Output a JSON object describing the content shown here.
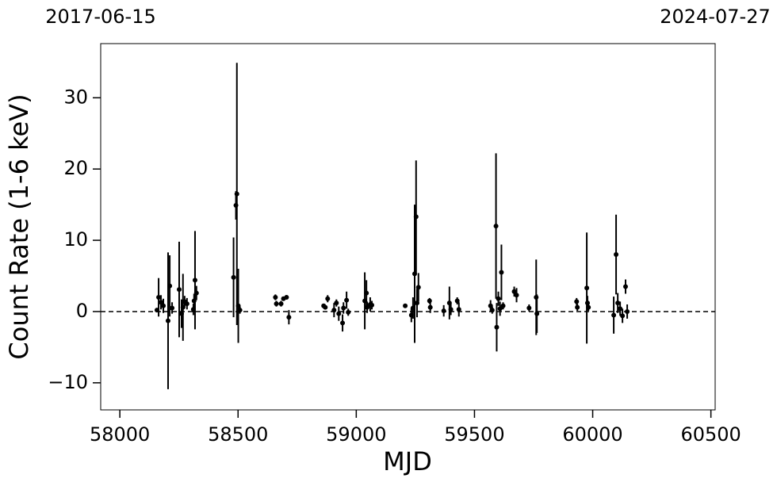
{
  "chart_data": {
    "type": "errorbar_scatter",
    "xlabel": "MJD",
    "ylabel": "Count Rate (1-6 keV)",
    "xlim": [
      57919,
      60518
    ],
    "ylim": [
      -13.8,
      37.6
    ],
    "xticks": [
      58000,
      58500,
      59000,
      59500,
      60000,
      60500
    ],
    "yticks": [
      {
        "value": -10,
        "label": "−10"
      },
      0,
      10,
      20,
      30
    ],
    "x2ticks": [
      {
        "value": 57919,
        "label": "2017-06-15"
      },
      {
        "value": 60518,
        "label": "2024-07-27"
      }
    ],
    "hline": 0,
    "series": [
      {
        "color": "#000000",
        "x": [
          58157,
          58164,
          58174,
          58184,
          58204,
          58211,
          58221,
          58251,
          58261,
          58267,
          58274,
          58284,
          58311,
          58314,
          58318,
          58324,
          58481,
          58491,
          58495,
          58501,
          58508,
          58658,
          58662,
          58682,
          58692,
          58705,
          58715,
          58862,
          58869,
          58879,
          58906,
          58916,
          58926,
          58942,
          58946,
          58959,
          58966,
          59036,
          59043,
          59046,
          59059,
          59066,
          59207,
          59233,
          59240,
          59247,
          59253,
          59257,
          59263,
          59310,
          59313,
          59370,
          59394,
          59400,
          59427,
          59434,
          59568,
          59575,
          59591,
          59594,
          59601,
          59608,
          59614,
          59621,
          59668,
          59678,
          59731,
          59761,
          59764,
          59932,
          59935,
          59975,
          59978,
          59982,
          60089,
          60099,
          60106,
          60116,
          60126,
          60139,
          60146
        ],
        "values": [
          0.2,
          2.0,
          1.3,
          0.8,
          -1.3,
          3.6,
          0.5,
          3.1,
          -0.3,
          0.6,
          1.4,
          1.1,
          0.3,
          1.5,
          4.4,
          2.6,
          4.8,
          14.9,
          16.5,
          0.8,
          0.2,
          2.0,
          1.1,
          1.1,
          1.8,
          2.0,
          -0.8,
          0.8,
          0.6,
          1.8,
          0.2,
          1.2,
          -0.3,
          -1.6,
          0.5,
          1.6,
          -0.1,
          1.5,
          2.6,
          0.6,
          1.0,
          0.9,
          0.8,
          -0.5,
          0.5,
          5.3,
          13.3,
          1.2,
          3.4,
          1.5,
          0.6,
          0.1,
          1.2,
          0.3,
          1.5,
          0.3,
          0.8,
          0.2,
          12.0,
          -2.2,
          1.8,
          0.4,
          5.5,
          0.8,
          2.8,
          2.3,
          0.5,
          2.0,
          -0.3,
          1.4,
          0.6,
          3.3,
          1.2,
          0.6,
          -0.5,
          8.0,
          1.2,
          0.4,
          -0.6,
          3.5,
          0.0
        ],
        "errors": [
          0.3,
          2.7,
          1.0,
          1.0,
          9.6,
          4.3,
          0.8,
          6.7,
          2.0,
          4.7,
          0.8,
          0.8,
          0.8,
          1.0,
          6.9,
          1.0,
          5.6,
          2.0,
          18.4,
          5.2,
          0.5,
          0.4,
          0.4,
          0.4,
          0.3,
          0.3,
          1.0,
          0.3,
          0.3,
          0.5,
          1.0,
          0.5,
          1.0,
          1.2,
          0.8,
          1.2,
          0.5,
          4.0,
          1.8,
          0.8,
          1.0,
          0.6,
          0.3,
          1.0,
          1.5,
          9.7,
          7.9,
          2.0,
          2.0,
          0.4,
          0.8,
          0.8,
          2.3,
          0.8,
          0.5,
          1.0,
          0.8,
          0.5,
          10.2,
          3.4,
          1.0,
          1.0,
          3.9,
          0.5,
          0.7,
          1.0,
          0.5,
          5.3,
          2.7,
          0.5,
          0.5,
          7.8,
          1.0,
          0.5,
          2.6,
          5.6,
          1.4,
          1.0,
          1.0,
          1.0,
          1.0
        ]
      }
    ]
  }
}
